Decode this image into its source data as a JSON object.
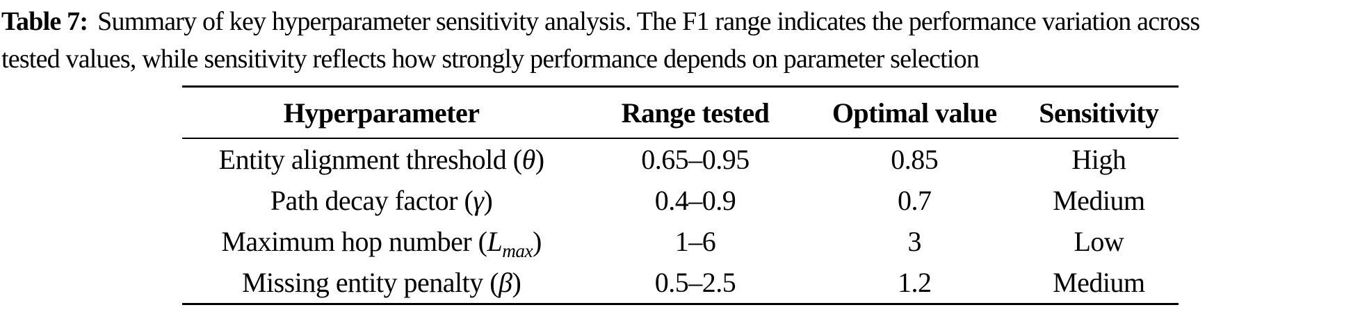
{
  "caption": {
    "label": "Table 7:",
    "line1_rest": "Summary of key hyperparameter sensitivity analysis. The F1 range indicates the performance variation across",
    "line2": "tested values, while sensitivity reflects how strongly performance depends on parameter selection"
  },
  "table": {
    "columns": [
      "Hyperparameter",
      "Range tested",
      "Optimal value",
      "Sensitivity"
    ],
    "rows": [
      {
        "param_prefix": "Entity alignment threshold (",
        "param_symbol": "θ",
        "param_subscript": "",
        "param_suffix": ")",
        "range_tested": "0.65–0.95",
        "optimal_value": "0.85",
        "sensitivity": "High"
      },
      {
        "param_prefix": "Path decay factor (",
        "param_symbol": "γ",
        "param_subscript": "",
        "param_suffix": ")",
        "range_tested": "0.4–0.9",
        "optimal_value": "0.7",
        "sensitivity": "Medium"
      },
      {
        "param_prefix": "Maximum hop number (",
        "param_symbol": "L",
        "param_subscript": "max",
        "param_suffix": ")",
        "range_tested": "1–6",
        "optimal_value": "3",
        "sensitivity": "Low"
      },
      {
        "param_prefix": "Missing entity penalty (",
        "param_symbol": "β",
        "param_subscript": "",
        "param_suffix": ")",
        "range_tested": "0.5–2.5",
        "optimal_value": "1.2",
        "sensitivity": "Medium"
      }
    ]
  },
  "colors": {
    "text": "#000000",
    "rule": "#000000",
    "background": "#ffffff"
  }
}
